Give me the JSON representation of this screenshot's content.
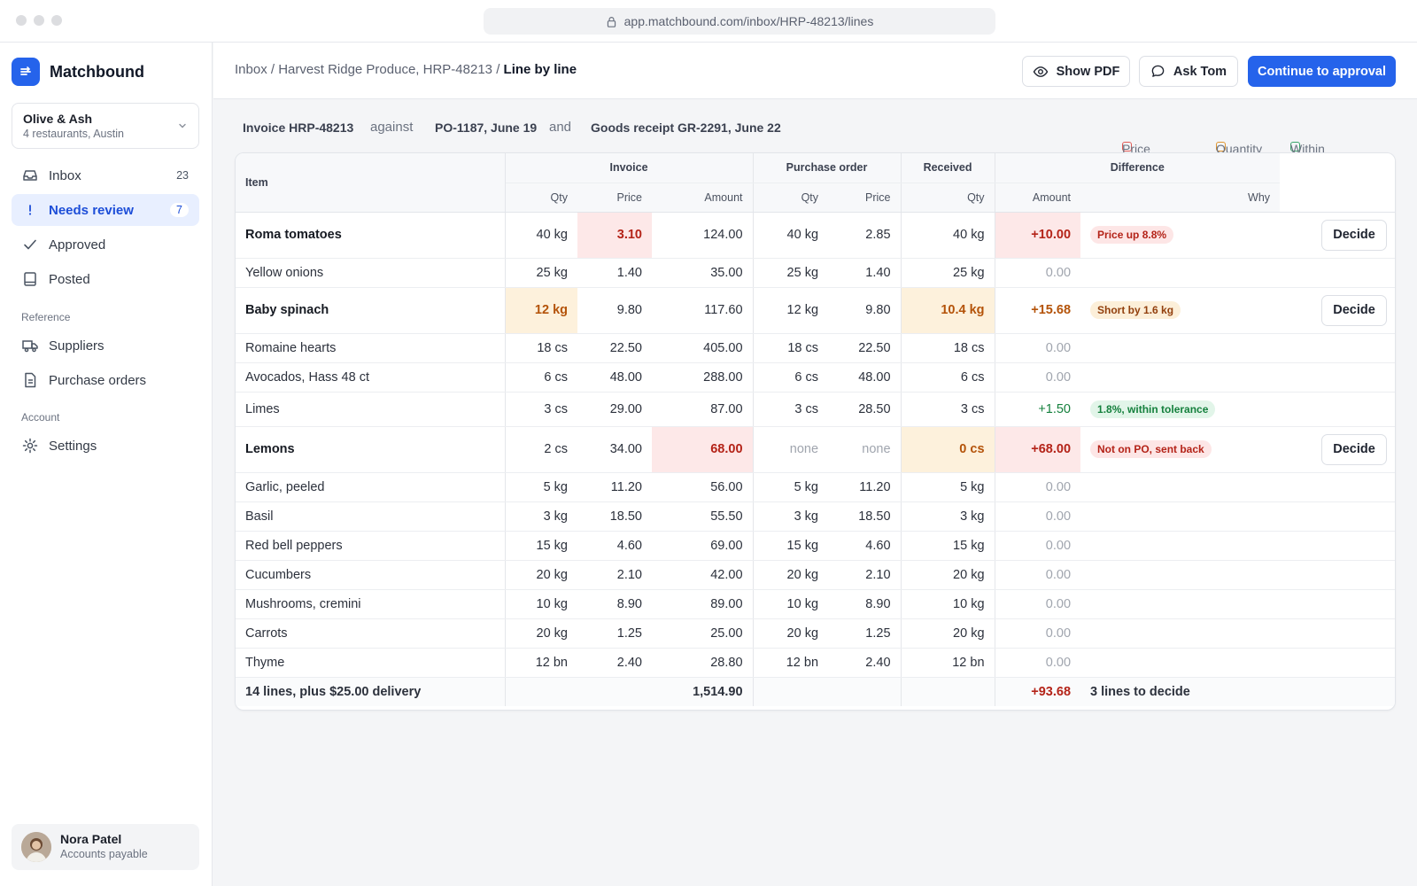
{
  "browser": {
    "url": "app.matchbound.com/inbox/HRP-48213/lines"
  },
  "sidebar": {
    "brand": "Matchbound",
    "org": {
      "name": "Olive & Ash",
      "sub": "4 restaurants, Austin"
    },
    "nav": [
      {
        "label": "Inbox",
        "count": "23",
        "icon": "inbox-icon"
      },
      {
        "label": "Needs review",
        "count": "7",
        "icon": "exclamation-icon",
        "active": true
      },
      {
        "label": "Approved",
        "count": "",
        "icon": "check-icon"
      },
      {
        "label": "Posted",
        "count": "",
        "icon": "book-icon"
      }
    ],
    "section_reference": "Reference",
    "reference": [
      {
        "label": "Suppliers",
        "icon": "truck-icon"
      },
      {
        "label": "Purchase orders",
        "icon": "document-icon"
      }
    ],
    "section_account": "Account",
    "account": [
      {
        "label": "Settings",
        "icon": "gear-icon"
      }
    ],
    "user": {
      "name": "Nora Patel",
      "role": "Accounts payable"
    }
  },
  "header": {
    "crumbs": {
      "root": "Inbox",
      "sep1": "/",
      "parent": "Harvest Ridge Produce, HRP-48213",
      "sep2": "/",
      "current": "Line by line"
    },
    "show_pdf": "Show PDF",
    "ask": "Ask Tom",
    "continue": "Continue to approval"
  },
  "context": {
    "invoice": "Invoice HRP-48213",
    "against": "against",
    "po": "PO-1187, June 19",
    "and": "and",
    "receipt": "Goods receipt GR-2291, June 22",
    "legend": [
      {
        "label": "Price or PO",
        "color": "#e05a55"
      },
      {
        "label": "Quantity",
        "color": "#e0952f"
      },
      {
        "label": "Within tolerance",
        "color": "#3aa66b"
      }
    ]
  },
  "table": {
    "groups": {
      "item": "Item",
      "invoice": "Invoice",
      "po": "Purchase order",
      "received": "Received",
      "difference": "Difference"
    },
    "sub": {
      "qty": "Qty",
      "price": "Price",
      "amount": "Amount",
      "why": "Why"
    },
    "decide": "Decide",
    "rows": [
      {
        "item": "Roma tomatoes",
        "inv_qty": "40 kg",
        "inv_price": "3.10",
        "inv_amount": "124.00",
        "po_qty": "40 kg",
        "po_price": "2.85",
        "rec_qty": "40 kg",
        "diff": "+10.00",
        "why": "Price up 8.8%"
      },
      {
        "item": "Yellow onions",
        "inv_qty": "25 kg",
        "inv_price": "1.40",
        "inv_amount": "35.00",
        "po_qty": "25 kg",
        "po_price": "1.40",
        "rec_qty": "25 kg",
        "diff": "0.00",
        "why": ""
      },
      {
        "item": "Baby spinach",
        "inv_qty": "12 kg",
        "inv_price": "9.80",
        "inv_amount": "117.60",
        "po_qty": "12 kg",
        "po_price": "9.80",
        "rec_qty": "10.4 kg",
        "diff": "+15.68",
        "why": "Short by 1.6 kg"
      },
      {
        "item": "Romaine hearts",
        "inv_qty": "18 cs",
        "inv_price": "22.50",
        "inv_amount": "405.00",
        "po_qty": "18 cs",
        "po_price": "22.50",
        "rec_qty": "18 cs",
        "diff": "0.00",
        "why": ""
      },
      {
        "item": "Avocados, Hass 48 ct",
        "inv_qty": "6 cs",
        "inv_price": "48.00",
        "inv_amount": "288.00",
        "po_qty": "6 cs",
        "po_price": "48.00",
        "rec_qty": "6 cs",
        "diff": "0.00",
        "why": ""
      },
      {
        "item": "Limes",
        "inv_qty": "3 cs",
        "inv_price": "29.00",
        "inv_amount": "87.00",
        "po_qty": "3 cs",
        "po_price": "28.50",
        "rec_qty": "3 cs",
        "diff": "+1.50",
        "why": "1.8%, within tolerance"
      },
      {
        "item": "Lemons",
        "inv_qty": "2 cs",
        "inv_price": "34.00",
        "inv_amount": "68.00",
        "po_qty": "none",
        "po_price": "none",
        "rec_qty": "0 cs",
        "diff": "+68.00",
        "why": "Not on PO, sent back"
      },
      {
        "item": "Garlic, peeled",
        "inv_qty": "5 kg",
        "inv_price": "11.20",
        "inv_amount": "56.00",
        "po_qty": "5 kg",
        "po_price": "11.20",
        "rec_qty": "5 kg",
        "diff": "0.00",
        "why": ""
      },
      {
        "item": "Basil",
        "inv_qty": "3 kg",
        "inv_price": "18.50",
        "inv_amount": "55.50",
        "po_qty": "3 kg",
        "po_price": "18.50",
        "rec_qty": "3 kg",
        "diff": "0.00",
        "why": ""
      },
      {
        "item": "Red bell peppers",
        "inv_qty": "15 kg",
        "inv_price": "4.60",
        "inv_amount": "69.00",
        "po_qty": "15 kg",
        "po_price": "4.60",
        "rec_qty": "15 kg",
        "diff": "0.00",
        "why": ""
      },
      {
        "item": "Cucumbers",
        "inv_qty": "20 kg",
        "inv_price": "2.10",
        "inv_amount": "42.00",
        "po_qty": "20 kg",
        "po_price": "2.10",
        "rec_qty": "20 kg",
        "diff": "0.00",
        "why": ""
      },
      {
        "item": "Mushrooms, cremini",
        "inv_qty": "10 kg",
        "inv_price": "8.90",
        "inv_amount": "89.00",
        "po_qty": "10 kg",
        "po_price": "8.90",
        "rec_qty": "10 kg",
        "diff": "0.00",
        "why": ""
      },
      {
        "item": "Carrots",
        "inv_qty": "20 kg",
        "inv_price": "1.25",
        "inv_amount": "25.00",
        "po_qty": "20 kg",
        "po_price": "1.25",
        "rec_qty": "20 kg",
        "diff": "0.00",
        "why": ""
      },
      {
        "item": "Thyme",
        "inv_qty": "12 bn",
        "inv_price": "2.40",
        "inv_amount": "28.80",
        "po_qty": "12 bn",
        "po_price": "2.40",
        "rec_qty": "12 bn",
        "diff": "0.00",
        "why": ""
      }
    ],
    "footer": {
      "label": "14 lines, plus $25.00 delivery",
      "amount": "1,514.90",
      "diff": "+93.68",
      "decide": "3 lines to decide"
    }
  }
}
